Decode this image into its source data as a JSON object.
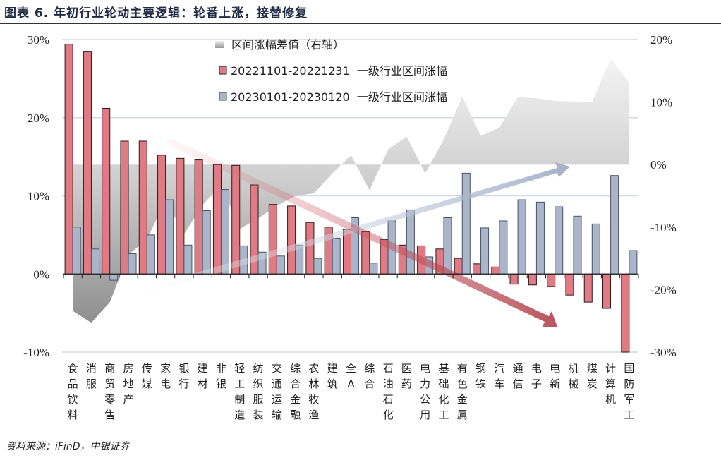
{
  "title": "图表 6. 年初行业轮动主要逻辑：轮番上涨，接替修复",
  "source": "资料来源：iFinD，中银证券",
  "chart_data": {
    "type": "bar",
    "categories": [
      "食品饮料",
      "消服",
      "商贸零售",
      "房地产",
      "传媒",
      "家电",
      "银行",
      "建材",
      "非银",
      "轻工制造",
      "纺织服装",
      "交通运输",
      "综合金融",
      "农林牧渔",
      "建筑",
      "全A",
      "综合",
      "石油石化",
      "医药",
      "电力公用",
      "基础化工",
      "有色金属",
      "钢铁",
      "汽车",
      "通信",
      "电子",
      "电新",
      "机械",
      "煤炭",
      "计算机",
      "国防军工"
    ],
    "series": [
      {
        "name": "20221101-20221231  一级行业区间涨幅",
        "axis": "left",
        "type": "bar",
        "color": "#e07b85",
        "values": [
          29.4,
          28.5,
          21.2,
          17.0,
          17.0,
          15.2,
          14.8,
          14.6,
          14.0,
          13.9,
          11.4,
          8.9,
          8.7,
          6.6,
          6.0,
          5.7,
          5.4,
          4.4,
          3.7,
          3.6,
          3.2,
          2.0,
          1.3,
          0.9,
          -1.3,
          -1.4,
          -1.6,
          -2.7,
          -3.6,
          -4.4,
          -10.1
        ]
      },
      {
        "name": "20230101-20230120  一级行业区间涨幅",
        "axis": "left",
        "type": "bar",
        "color": "#aab5c9",
        "values": [
          6.0,
          3.2,
          -0.8,
          2.6,
          5.0,
          9.5,
          3.7,
          8.1,
          10.8,
          3.6,
          2.8,
          2.3,
          3.7,
          2.0,
          4.6,
          7.2,
          1.4,
          6.8,
          8.2,
          2.2,
          7.2,
          12.9,
          5.9,
          6.8,
          9.5,
          9.2,
          8.6,
          7.4,
          6.4,
          12.6,
          3.0
        ]
      },
      {
        "name": "区间涨幅差值（右轴）",
        "axis": "right",
        "type": "area",
        "color": "#bdbdbd",
        "values": [
          -23.4,
          -25.3,
          -22.0,
          -14.4,
          -12.0,
          -5.7,
          -11.1,
          -6.5,
          -3.2,
          -10.3,
          -8.6,
          -6.6,
          -5.0,
          -4.6,
          -1.4,
          1.5,
          -4.1,
          2.4,
          4.5,
          -1.4,
          4.0,
          10.9,
          4.6,
          5.9,
          10.8,
          10.6,
          10.2,
          10.1,
          10.0,
          17.0,
          13.1
        ]
      }
    ],
    "left_axis": {
      "ylim": [
        -10,
        30
      ],
      "ticks": [
        "30%",
        "20%",
        "10%",
        "0%",
        "-10%"
      ],
      "tick_values": [
        30,
        20,
        10,
        0,
        -10
      ]
    },
    "right_axis": {
      "ylim": [
        -30,
        20
      ],
      "ticks": [
        "20%",
        "10%",
        "0%",
        "-10%",
        "-20%",
        "-30%"
      ],
      "tick_values": [
        20,
        10,
        0,
        -10,
        -20,
        -30
      ]
    },
    "grid": true,
    "legend_position": "top-center",
    "legend": [
      "区间涨幅差值（右轴）",
      "20221101-20221231  一级行业区间涨幅",
      "20230101-20230120  一级行业区间涨幅"
    ]
  }
}
